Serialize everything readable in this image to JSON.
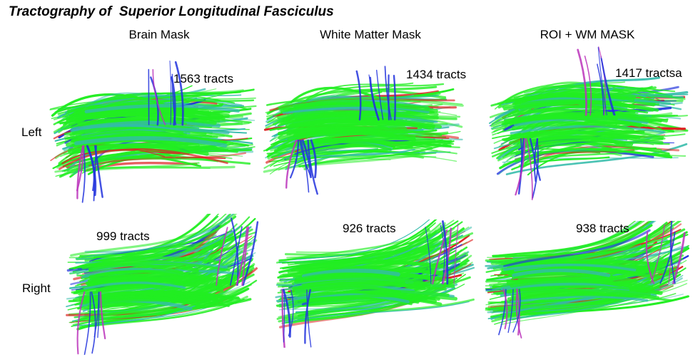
{
  "title": "Tractography of  Superior Longitudinal Fasciculus",
  "columns": [
    "Brain Mask",
    "White Matter Mask",
    "ROI + WM MASK"
  ],
  "rows": [
    "Left",
    "Right"
  ],
  "tract_counts": {
    "left": [
      "1563 tracts",
      "1434 tracts",
      "1417 tractsa"
    ],
    "right": [
      "999 tracts",
      "926 tracts",
      "938 tracts"
    ]
  },
  "colors": {
    "green": "#22ee22",
    "cyan": "#33bbaa",
    "blue": "#2233dd",
    "red": "#dd2222",
    "magenta": "#bb33bb"
  }
}
